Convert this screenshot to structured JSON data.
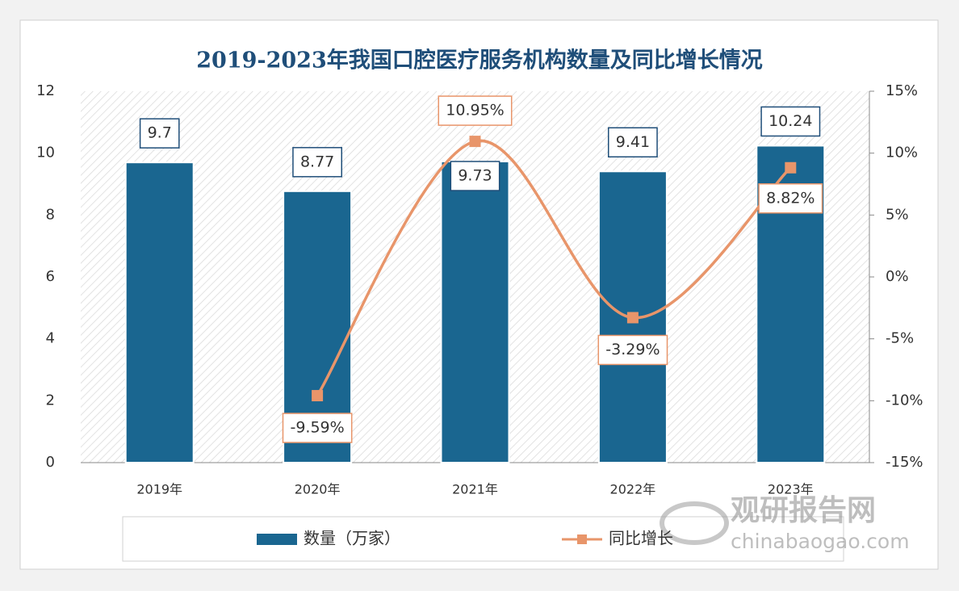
{
  "chart_data": {
    "type": "bar-line",
    "title": "2019-2023年我国口腔医疗服务机构数量及同比增长情况",
    "categories": [
      "2019年",
      "2020年",
      "2021年",
      "2022年",
      "2023年"
    ],
    "series": [
      {
        "name": "数量（万家）",
        "type": "bar",
        "color": "#1a6690",
        "values": [
          9.7,
          8.77,
          9.73,
          9.41,
          10.24
        ]
      },
      {
        "name": "同比增长",
        "type": "line",
        "axis": "y2",
        "color": "#e8956a",
        "values": [
          null,
          -9.59,
          10.95,
          -3.29,
          8.82
        ],
        "value_labels": [
          null,
          "-9.59%",
          "10.95%",
          "-3.29%",
          "8.82%"
        ]
      }
    ],
    "ylim": [
      0,
      12
    ],
    "yticks": [
      0,
      2,
      4,
      6,
      8,
      10,
      12
    ],
    "y2lim": [
      -15,
      15
    ],
    "y2ticks": [
      {
        "value": -15,
        "label": "-15%"
      },
      {
        "value": -10,
        "label": "-10%"
      },
      {
        "value": -5,
        "label": "-5%"
      },
      {
        "value": 0,
        "label": "0%"
      },
      {
        "value": 5,
        "label": "5%"
      },
      {
        "value": 10,
        "label": "10%"
      },
      {
        "value": 15,
        "label": "15%"
      }
    ],
    "legend": "bottom",
    "watermark": {
      "name": "观研报告网",
      "site": "chinabaogao.com"
    }
  }
}
